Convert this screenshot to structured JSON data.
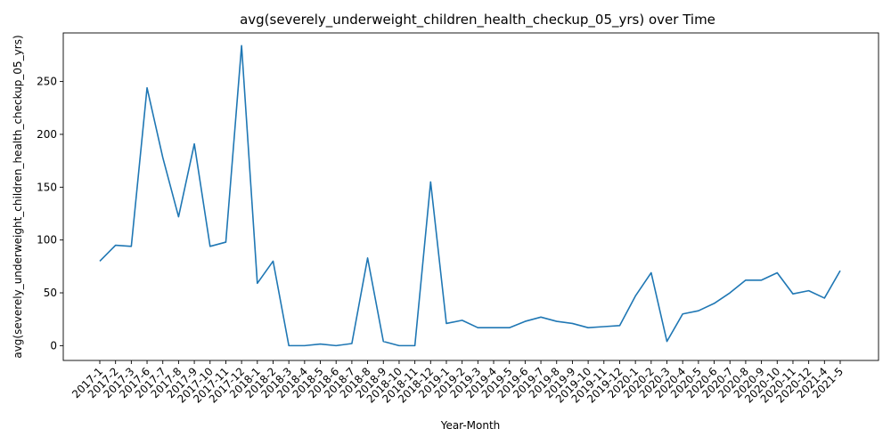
{
  "chart_data": {
    "type": "line",
    "title": "avg(severely_underweight_children_health_checkup_05_yrs) over Time",
    "xlabel": "Year-Month",
    "ylabel": "avg(severely_underweight_children_health_checkup_05_yrs)",
    "ylim": [
      -14,
      296
    ],
    "yticks": [
      0,
      50,
      100,
      150,
      200,
      250
    ],
    "grid": false,
    "categories": [
      "2017-1",
      "2017-2",
      "2017-3",
      "2017-6",
      "2017-7",
      "2017-8",
      "2017-9",
      "2017-10",
      "2017-11",
      "2017-12",
      "2018-1",
      "2018-2",
      "2018-3",
      "2018-4",
      "2018-5",
      "2018-6",
      "2018-7",
      "2018-8",
      "2018-9",
      "2018-10",
      "2018-11",
      "2018-12",
      "2019-1",
      "2019-2",
      "2019-3",
      "2019-4",
      "2019-5",
      "2019-6",
      "2019-7",
      "2019-8",
      "2019-9",
      "2019-10",
      "2019-11",
      "2019-12",
      "2020-1",
      "2020-2",
      "2020-3",
      "2020-4",
      "2020-5",
      "2020-6",
      "2020-7",
      "2020-8",
      "2020-9",
      "2020-10",
      "2020-11",
      "2020-12",
      "2021-4",
      "2021-5"
    ],
    "series": [
      {
        "color": "#1f77b4",
        "values": [
          80,
          95,
          94,
          244,
          178,
          122,
          191,
          94,
          98,
          284,
          59,
          80,
          0,
          0,
          1.5,
          0,
          2,
          83,
          4,
          0,
          0,
          155,
          21,
          24,
          17,
          17,
          17,
          23,
          27,
          23,
          21,
          17,
          18,
          19,
          47,
          69,
          4,
          30,
          33,
          40,
          50,
          62,
          62,
          69,
          49,
          52,
          45,
          71
        ]
      }
    ]
  }
}
